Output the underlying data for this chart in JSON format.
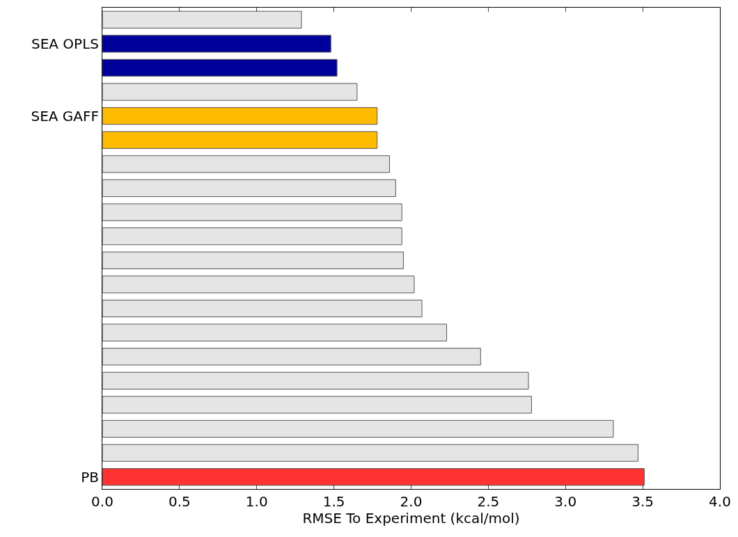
{
  "chart_data": {
    "type": "bar",
    "orientation": "horizontal",
    "xlabel": "RMSE To Experiment (kcal/mol)",
    "categories": [
      null,
      "SEA OPLS",
      null,
      null,
      "SEA GAFF",
      null,
      null,
      null,
      null,
      null,
      null,
      null,
      null,
      null,
      null,
      null,
      null,
      null,
      null,
      "PB"
    ],
    "values": [
      1.29,
      1.48,
      1.52,
      1.65,
      1.78,
      1.78,
      1.86,
      1.9,
      1.94,
      1.94,
      1.95,
      2.02,
      2.07,
      2.23,
      2.45,
      2.76,
      2.78,
      3.31,
      3.47,
      3.51
    ],
    "colors": [
      "#e5e5e5",
      "#00009a",
      "#00009a",
      "#e5e5e5",
      "#ffbb00",
      "#ffbb00",
      "#e5e5e5",
      "#e5e5e5",
      "#e5e5e5",
      "#e5e5e5",
      "#e5e5e5",
      "#e5e5e5",
      "#e5e5e5",
      "#e5e5e5",
      "#e5e5e5",
      "#e5e5e5",
      "#e5e5e5",
      "#e5e5e5",
      "#e5e5e5",
      "#ff3333"
    ],
    "xlim": [
      0,
      4.0
    ],
    "xticks": [
      {
        "value": 0,
        "label": "0.0"
      },
      0.5,
      {
        "value": 1,
        "label": "1.0"
      },
      1.5,
      {
        "value": 2,
        "label": "2.0"
      },
      2.5,
      {
        "value": 3,
        "label": "3.0"
      },
      3.5,
      {
        "value": 4,
        "label": "4.0"
      }
    ],
    "legend": false
  }
}
